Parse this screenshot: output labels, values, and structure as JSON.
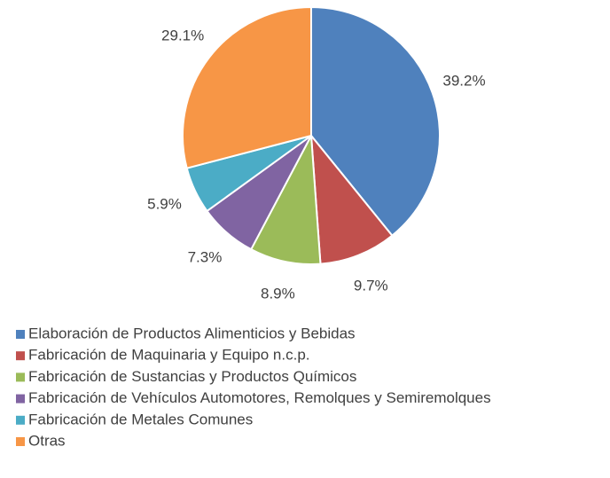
{
  "chart_data": {
    "type": "pie",
    "categories": [
      "Elaboración de Productos Alimenticios y Bebidas",
      "Fabricación de Maquinaria y Equipo n.c.p.",
      "Fabricación de Sustancias y Productos Químicos",
      "Fabricación de Vehículos Automotores, Remolques y Semiremolques",
      "Fabricación de Metales Comunes",
      "Otras"
    ],
    "values": [
      39.2,
      9.7,
      8.9,
      7.3,
      5.9,
      29.1
    ],
    "value_labels": [
      "39.2%",
      "9.7%",
      "8.9%",
      "7.3%",
      "5.9%",
      "29.1%"
    ],
    "colors": [
      "#4f81bd",
      "#c0504d",
      "#9bbb59",
      "#8064a2",
      "#4bacc6",
      "#f79646"
    ],
    "legend": "bottom"
  }
}
